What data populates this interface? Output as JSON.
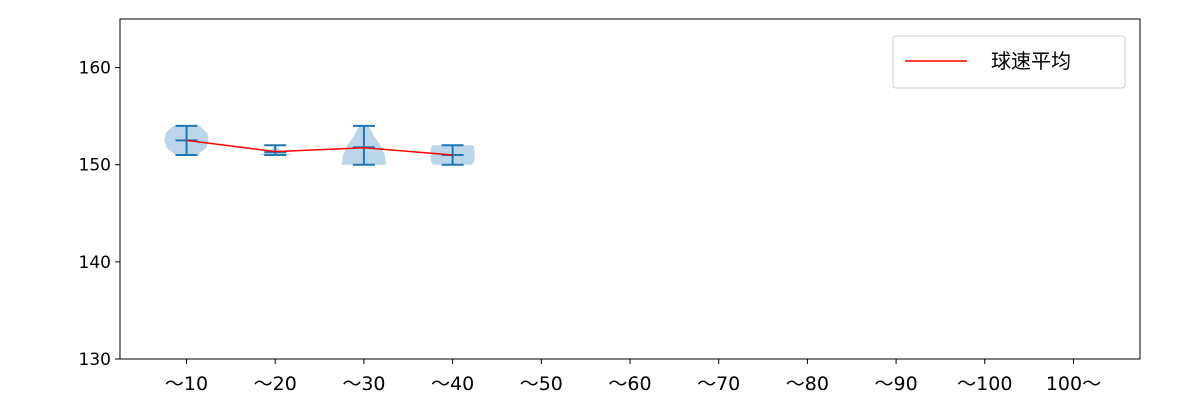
{
  "chart_data": {
    "type": "violin",
    "categories": [
      "～10",
      "～20",
      "～30",
      "～40",
      "～50",
      "～60",
      "～70",
      "～80",
      "～90",
      "～100",
      "100～"
    ],
    "violins": [
      {
        "category": "～10",
        "min": 151,
        "max": 154,
        "median": 152.5
      },
      {
        "category": "～20",
        "min": 151,
        "max": 152,
        "median": 151.3
      },
      {
        "category": "～30",
        "min": 150,
        "max": 154,
        "median": 151.8
      },
      {
        "category": "～40",
        "min": 150,
        "max": 152,
        "median": 151
      }
    ],
    "series": [
      {
        "name": "球速平均",
        "values": [
          152.5,
          151.35,
          151.75,
          151.0,
          null,
          null,
          null,
          null,
          null,
          null,
          null
        ]
      }
    ],
    "ylim": [
      130,
      165
    ],
    "yticks": [
      130,
      140,
      150,
      160
    ],
    "grid": false,
    "legend": "top-right",
    "colors": {
      "violin": "#1f77b4",
      "mean_line": "#ff0000"
    }
  }
}
